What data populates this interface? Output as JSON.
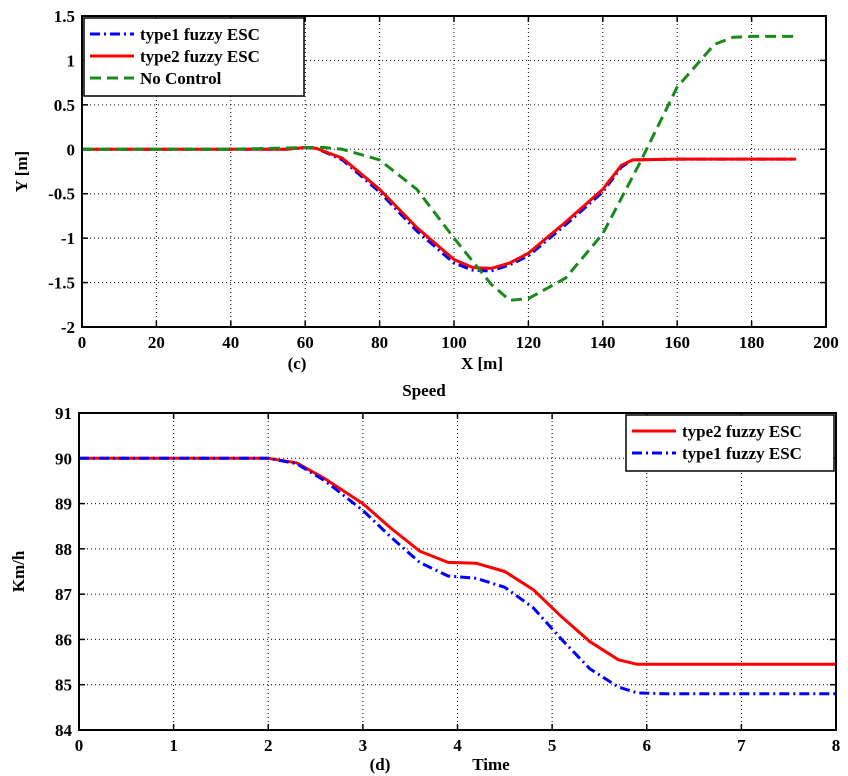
{
  "chart_data": [
    {
      "type": "line",
      "panel_label": "(c)",
      "title": "",
      "xlabel": "X [m]",
      "ylabel": "Y [m]",
      "xlim": [
        0,
        200
      ],
      "ylim": [
        -2,
        1.5
      ],
      "xticks": [
        "0",
        "20",
        "40",
        "60",
        "80",
        "100",
        "120",
        "140",
        "160",
        "180",
        "200"
      ],
      "yticks": [
        "-2",
        "-1.5",
        "-1",
        "-0.5",
        "0",
        "0.5",
        "1",
        "1.5"
      ],
      "grid": true,
      "legend_position": "top-left",
      "series": [
        {
          "name": "type1 fuzzy ESC",
          "color": "#0000ff",
          "style": "dashdot",
          "x": [
            0,
            20,
            40,
            55,
            60,
            63,
            70,
            80,
            90,
            100,
            105,
            110,
            115,
            120,
            130,
            140,
            145,
            148,
            160,
            180,
            192
          ],
          "y": [
            0,
            0,
            0,
            0,
            0.02,
            0.01,
            -0.12,
            -0.48,
            -0.92,
            -1.28,
            -1.36,
            -1.37,
            -1.3,
            -1.2,
            -0.85,
            -0.48,
            -0.2,
            -0.12,
            -0.11,
            -0.11,
            -0.11
          ]
        },
        {
          "name": "type2 fuzzy ESC",
          "color": "#ff0000",
          "style": "solid",
          "x": [
            0,
            20,
            40,
            55,
            60,
            63,
            70,
            80,
            90,
            100,
            105,
            110,
            115,
            120,
            130,
            140,
            145,
            148,
            160,
            180,
            192
          ],
          "y": [
            0,
            0,
            0,
            0,
            0.02,
            0.01,
            -0.1,
            -0.45,
            -0.88,
            -1.24,
            -1.33,
            -1.34,
            -1.28,
            -1.17,
            -0.82,
            -0.45,
            -0.18,
            -0.12,
            -0.11,
            -0.11,
            -0.11
          ]
        },
        {
          "name": "No Control",
          "color": "#1a8a1a",
          "style": "dashed",
          "x": [
            0,
            20,
            40,
            60,
            65,
            70,
            80,
            90,
            100,
            110,
            115,
            120,
            130,
            140,
            150,
            160,
            170,
            175,
            180,
            192
          ],
          "y": [
            0,
            0,
            0,
            0.02,
            0.02,
            0,
            -0.12,
            -0.45,
            -1.0,
            -1.52,
            -1.7,
            -1.68,
            -1.45,
            -0.95,
            -0.15,
            0.7,
            1.18,
            1.26,
            1.27,
            1.27
          ]
        }
      ]
    },
    {
      "type": "line",
      "title": "Speed",
      "panel_label": "(d)",
      "xlabel": "Time",
      "ylabel": "Km/h",
      "xlim": [
        0,
        8
      ],
      "ylim": [
        84,
        91
      ],
      "xticks": [
        "0",
        "1",
        "2",
        "3",
        "4",
        "5",
        "6",
        "7",
        "8"
      ],
      "yticks": [
        "84",
        "85",
        "86",
        "87",
        "88",
        "89",
        "90",
        "91"
      ],
      "grid": true,
      "legend_position": "top-right",
      "series": [
        {
          "name": "type2 fuzzy ESC",
          "color": "#ff0000",
          "style": "solid",
          "x": [
            0,
            1,
            2,
            2.3,
            2.6,
            3,
            3.3,
            3.6,
            3.9,
            4.2,
            4.5,
            4.8,
            5.1,
            5.4,
            5.7,
            5.9,
            6.2,
            7,
            8
          ],
          "y": [
            90,
            90,
            90,
            89.9,
            89.55,
            89.0,
            88.45,
            87.95,
            87.7,
            87.68,
            87.5,
            87.1,
            86.5,
            85.95,
            85.55,
            85.45,
            85.45,
            85.45,
            85.45
          ]
        },
        {
          "name": "type1 fuzzy ESC",
          "color": "#0000ff",
          "style": "dashdot",
          "x": [
            0,
            1,
            2,
            2.3,
            2.6,
            3,
            3.3,
            3.6,
            3.9,
            4.2,
            4.5,
            4.8,
            5.1,
            5.4,
            5.7,
            5.9,
            6.2,
            7,
            8
          ],
          "y": [
            90,
            90,
            90,
            89.88,
            89.5,
            88.85,
            88.25,
            87.7,
            87.4,
            87.35,
            87.15,
            86.7,
            86.0,
            85.35,
            84.95,
            84.82,
            84.8,
            84.8,
            84.8
          ]
        }
      ]
    }
  ]
}
